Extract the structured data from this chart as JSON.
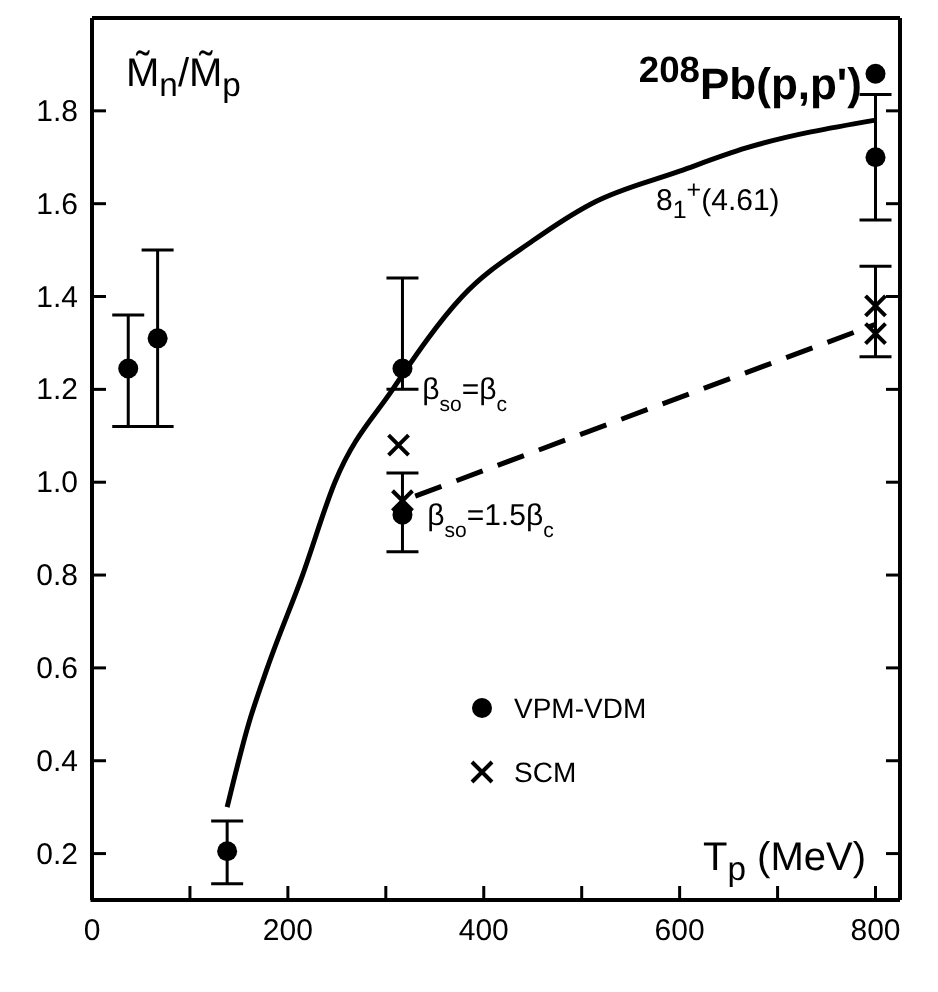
{
  "chart_data": {
    "type": "scatter",
    "title": "$^{208}$Pb(p,p')",
    "xlabel": "T$_{p}$ (MeV)",
    "ylabel": "M̃$_{n}$/M̃$_{p}$",
    "xlim": [
      0,
      825
    ],
    "ylim": [
      0.1,
      2.0
    ],
    "xticks": [
      0,
      {
        "value": 100,
        "label": null
      },
      200,
      {
        "value": 300,
        "label": null
      },
      400,
      {
        "value": 500,
        "label": null
      },
      600,
      {
        "value": 700,
        "label": null
      },
      800
    ],
    "yticks": [
      0.2,
      0.4,
      0.6,
      0.8,
      {
        "value": 1,
        "label": "1.0"
      },
      1.2,
      1.4,
      1.6,
      1.8
    ],
    "legend": "bottom",
    "grid": false,
    "series": [
      {
        "name": "VPM-VDM",
        "marker": "circle",
        "color": "#000000",
        "x": [
          37,
          67,
          138,
          317,
          317,
          800,
          800
        ],
        "values": [
          1.245,
          1.31,
          0.205,
          1.245,
          0.93,
          1.88,
          1.7
        ],
        "errors": [
          [
            1.12,
            1.36
          ],
          [
            1.12,
            1.5
          ],
          [
            0.135,
            0.27
          ],
          [
            1.2,
            1.44
          ],
          [
            0.85,
            1.02
          ],
          null,
          [
            1.565,
            1.835
          ]
        ]
      },
      {
        "name": "SCM",
        "marker": "cross",
        "color": "#000000",
        "x": [
          313,
          317,
          800,
          800
        ],
        "values": [
          1.08,
          0.96,
          1.38,
          1.32
        ],
        "errors": [
          null,
          null,
          [
            1.27,
            1.465
          ],
          null
        ]
      },
      {
        "type": "line",
        "line_style": "solid",
        "marker": "none",
        "color": "#000000",
        "x": [
          138,
          160,
          179,
          215,
          248,
          307,
          378,
          450,
          510,
          600,
          668,
          800
        ],
        "values": [
          0.3,
          0.48,
          0.6,
          0.8,
          1.0,
          1.2,
          1.4,
          1.52,
          1.6,
          1.67,
          1.72,
          1.78
        ]
      },
      {
        "type": "line",
        "line_style": "dashed",
        "marker": "none",
        "color": "#000000",
        "x": [
          330,
          800
        ],
        "values": [
          0.97,
          1.34
        ]
      }
    ],
    "annotations": [
      {
        "text": "β$_{so}$=β$_{c}$",
        "x": 325,
        "y": 1.2
      },
      {
        "text": "β$_{so}$=1.5β$_{c}$",
        "x": 330,
        "y": 0.93
      },
      "8$_{1}$$^{+}$(4.61)"
    ]
  }
}
